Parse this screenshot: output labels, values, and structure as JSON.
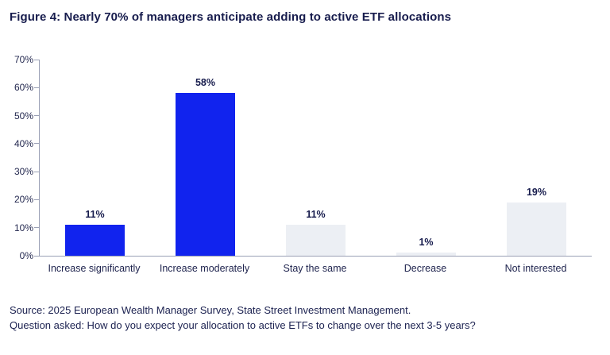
{
  "header": {
    "title": "Figure 4: Nearly 70% of managers anticipate adding to active ETF allocations"
  },
  "chart_data": {
    "type": "bar",
    "title": "Figure 4: Nearly 70% of managers anticipate adding to active ETF allocations",
    "categories": [
      "Increase significantly",
      "Increase moderately",
      "Stay the same",
      "Decrease",
      "Not interested"
    ],
    "values": [
      11,
      58,
      11,
      1,
      19
    ],
    "value_labels": [
      "11%",
      "58%",
      "11%",
      "1%",
      "19%"
    ],
    "bar_colors": [
      "#1123ee",
      "#1123ee",
      "#eceff4",
      "#eceff4",
      "#eceff4"
    ],
    "xlabel": "",
    "ylabel": "",
    "ylim": [
      0,
      70
    ],
    "yticks": [
      0,
      10,
      20,
      30,
      40,
      50,
      60,
      70
    ],
    "ytick_labels": [
      "0%",
      "10%",
      "20%",
      "30%",
      "40%",
      "50%",
      "60%",
      "70%"
    ],
    "grid": false,
    "legend": false
  },
  "colors": {
    "accent_blue": "#1123ee",
    "bar_gray": "#eceff4",
    "text_navy": "#171c4d",
    "axis_line": "#9aa0b5"
  },
  "footer": {
    "source": "Source: 2025 European Wealth Manager Survey, State Street Investment Management.",
    "question": "Question asked: How do you expect your allocation to active ETFs to change over the next 3-5 years?"
  }
}
